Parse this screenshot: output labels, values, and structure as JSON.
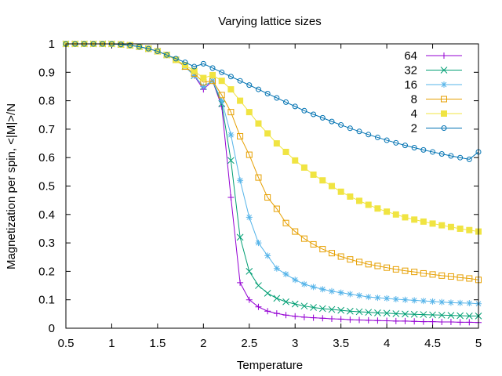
{
  "chart_data": {
    "type": "line",
    "title": "Varying lattice sizes",
    "xlabel": "Temperature",
    "ylabel": "Magnetization per spin, <|M|>/N",
    "xlim": [
      0.5,
      5
    ],
    "ylim": [
      0,
      1
    ],
    "xticks": [
      "0.5",
      "1",
      "1.5",
      "2",
      "2.5",
      "3",
      "3.5",
      "4",
      "4.5",
      "5"
    ],
    "yticks": [
      "0",
      "0.1",
      "0.2",
      "0.3",
      "0.4",
      "0.5",
      "0.6",
      "0.7",
      "0.8",
      "0.9",
      "1"
    ],
    "grid": false,
    "legend_position": "top-right",
    "x": [
      0.5,
      0.6,
      0.7,
      0.8,
      0.9,
      1.0,
      1.1,
      1.2,
      1.3,
      1.4,
      1.5,
      1.6,
      1.7,
      1.8,
      1.9,
      2.0,
      2.1,
      2.2,
      2.3,
      2.4,
      2.5,
      2.6,
      2.7,
      2.8,
      2.9,
      3.0,
      3.1,
      3.2,
      3.3,
      3.4,
      3.5,
      3.6,
      3.7,
      3.8,
      3.9,
      4.0,
      4.1,
      4.2,
      4.3,
      4.4,
      4.5,
      4.6,
      4.7,
      4.8,
      4.9,
      5.0
    ],
    "series": [
      {
        "name": "64",
        "color": "#9400d3",
        "marker": "plus",
        "values": [
          1.0,
          1.0,
          1.0,
          1.0,
          1.0,
          1.0,
          0.998,
          0.995,
          0.99,
          0.983,
          0.974,
          0.961,
          0.944,
          0.92,
          0.888,
          0.84,
          0.87,
          0.78,
          0.46,
          0.16,
          0.1,
          0.075,
          0.06,
          0.052,
          0.046,
          0.042,
          0.039,
          0.037,
          0.035,
          0.033,
          0.032,
          0.03,
          0.029,
          0.028,
          0.027,
          0.026,
          0.025,
          0.025,
          0.024,
          0.023,
          0.023,
          0.022,
          0.022,
          0.021,
          0.021,
          0.02
        ]
      },
      {
        "name": "32",
        "color": "#009e73",
        "marker": "cross",
        "values": [
          1.0,
          1.0,
          1.0,
          1.0,
          1.0,
          1.0,
          0.998,
          0.995,
          0.99,
          0.983,
          0.974,
          0.961,
          0.944,
          0.92,
          0.888,
          0.85,
          0.87,
          0.79,
          0.59,
          0.32,
          0.2,
          0.15,
          0.123,
          0.105,
          0.093,
          0.085,
          0.078,
          0.073,
          0.069,
          0.066,
          0.063,
          0.06,
          0.058,
          0.056,
          0.054,
          0.053,
          0.051,
          0.05,
          0.049,
          0.048,
          0.047,
          0.046,
          0.045,
          0.044,
          0.043,
          0.043
        ]
      },
      {
        "name": "16",
        "color": "#56b4e9",
        "marker": "star",
        "values": [
          1.0,
          1.0,
          1.0,
          1.0,
          1.0,
          1.0,
          0.998,
          0.995,
          0.99,
          0.983,
          0.974,
          0.961,
          0.944,
          0.92,
          0.888,
          0.85,
          0.87,
          0.8,
          0.68,
          0.52,
          0.39,
          0.3,
          0.255,
          0.21,
          0.19,
          0.17,
          0.155,
          0.145,
          0.137,
          0.13,
          0.125,
          0.12,
          0.115,
          0.11,
          0.107,
          0.105,
          0.102,
          0.1,
          0.098,
          0.096,
          0.094,
          0.092,
          0.09,
          0.089,
          0.088,
          0.086
        ]
      },
      {
        "name": "8",
        "color": "#e69f00",
        "marker": "square-open",
        "values": [
          1.0,
          1.0,
          1.0,
          1.0,
          1.0,
          1.0,
          0.998,
          0.995,
          0.99,
          0.983,
          0.974,
          0.961,
          0.944,
          0.92,
          0.895,
          0.865,
          0.87,
          0.82,
          0.76,
          0.675,
          0.61,
          0.53,
          0.46,
          0.42,
          0.37,
          0.34,
          0.315,
          0.295,
          0.278,
          0.264,
          0.252,
          0.242,
          0.233,
          0.225,
          0.219,
          0.213,
          0.207,
          0.202,
          0.198,
          0.193,
          0.189,
          0.185,
          0.182,
          0.178,
          0.175,
          0.17
        ]
      },
      {
        "name": "4",
        "color": "#f0e442",
        "marker": "square-filled",
        "values": [
          1.0,
          1.0,
          1.0,
          1.0,
          1.0,
          1.0,
          0.998,
          0.995,
          0.99,
          0.983,
          0.974,
          0.961,
          0.944,
          0.925,
          0.905,
          0.88,
          0.89,
          0.87,
          0.84,
          0.8,
          0.76,
          0.72,
          0.685,
          0.65,
          0.62,
          0.59,
          0.565,
          0.54,
          0.52,
          0.5,
          0.48,
          0.463,
          0.448,
          0.434,
          0.421,
          0.41,
          0.4,
          0.39,
          0.382,
          0.375,
          0.368,
          0.362,
          0.356,
          0.35,
          0.345,
          0.34
        ]
      },
      {
        "name": "2",
        "color": "#0072b2",
        "marker": "circle-open",
        "values": [
          1.0,
          1.0,
          1.0,
          1.0,
          1.0,
          1.0,
          0.998,
          0.995,
          0.99,
          0.983,
          0.974,
          0.961,
          0.948,
          0.935,
          0.92,
          0.93,
          0.915,
          0.9,
          0.885,
          0.87,
          0.855,
          0.84,
          0.825,
          0.81,
          0.795,
          0.78,
          0.765,
          0.752,
          0.74,
          0.727,
          0.715,
          0.703,
          0.692,
          0.681,
          0.671,
          0.661,
          0.652,
          0.643,
          0.635,
          0.627,
          0.62,
          0.613,
          0.606,
          0.6,
          0.594,
          0.62
        ]
      }
    ]
  }
}
